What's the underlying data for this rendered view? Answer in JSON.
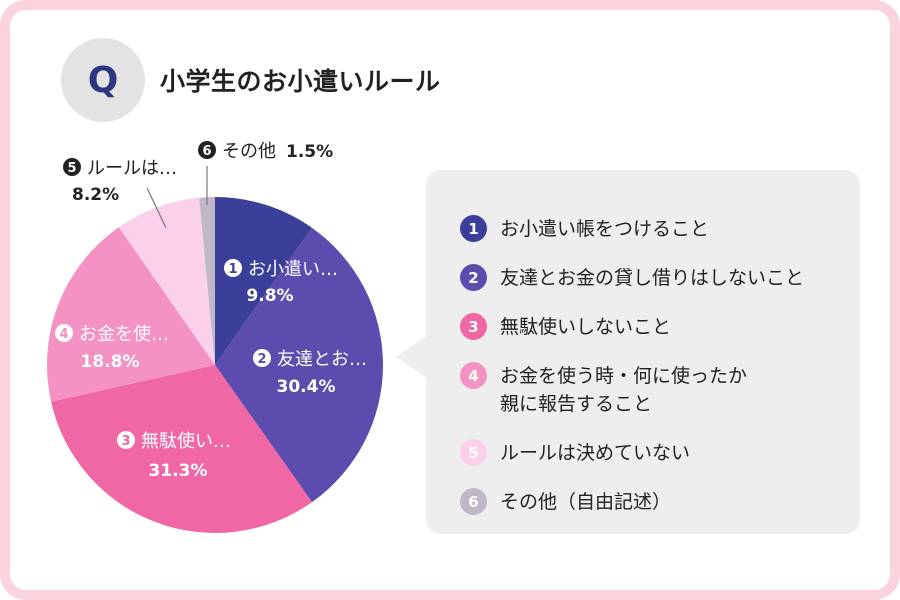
{
  "badge": "Q",
  "title": "小学生のお小遣いルール",
  "legend": [
    {
      "num": "1",
      "text": "お小遣い帳をつけること",
      "color": "#3a3f9a"
    },
    {
      "num": "2",
      "text": "友達とお金の貸し借りはしないこと",
      "color": "#5b4cae"
    },
    {
      "num": "3",
      "text": "無駄使いしないこと",
      "color": "#f067a6"
    },
    {
      "num": "4",
      "text": "お金を使う時・何に使ったか\n親に報告すること",
      "color": "#f592c4"
    },
    {
      "num": "5",
      "text": "ルールは決めていない",
      "color": "#fbd0ea"
    },
    {
      "num": "6",
      "text": "その他（自由記述）",
      "color": "#c0b7c8"
    }
  ],
  "chart_data": {
    "type": "pie",
    "unit": "%",
    "slices": [
      {
        "num": "1",
        "label": "お小遣い…",
        "value": 9.8,
        "display": "9.8%",
        "color": "#3a3f9a"
      },
      {
        "num": "2",
        "label": "友達とお…",
        "value": 30.4,
        "display": "30.4%",
        "color": "#5b4cae"
      },
      {
        "num": "3",
        "label": "無駄使い…",
        "value": 31.3,
        "display": "31.3%",
        "color": "#f067a6"
      },
      {
        "num": "4",
        "label": "お金を使…",
        "value": 18.8,
        "display": "18.8%",
        "color": "#f592c4"
      },
      {
        "num": "5",
        "label": "ルールは…",
        "value": 8.2,
        "display": "8.2%",
        "color": "#fbd0ea"
      },
      {
        "num": "6",
        "label": "その他",
        "value": 1.5,
        "display": "1.5%",
        "color": "#c0b7c8"
      }
    ]
  }
}
